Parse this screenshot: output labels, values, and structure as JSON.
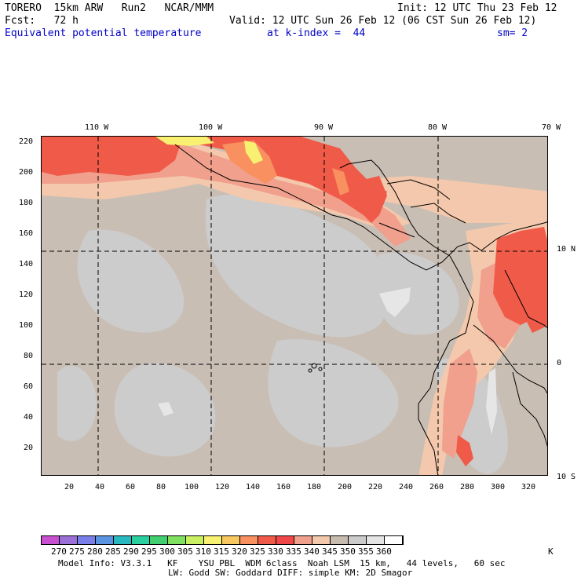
{
  "header": {
    "line1_left": "TORERO  15km ARW   Run2   NCAR/MMM",
    "line1_right": "Init: 12 UTC Thu 23 Feb 12",
    "line2_left": "Fcst:   72 h",
    "line2_right": "Valid: 12 UTC Sun 26 Feb 12 (06 CST Sun 26 Feb 12)",
    "field_name": "Equivalent potential temperature",
    "level_text": "at k-index =  44",
    "smooth_text": "sm= 2"
  },
  "map": {
    "top_lon_labels": [
      "110 W",
      "100 W",
      "90 W",
      "80 W",
      "70 W"
    ],
    "right_lat_labels": [
      "10 N",
      "0",
      "10 S"
    ],
    "left_y_ticks": [
      "220",
      "200",
      "180",
      "160",
      "140",
      "120",
      "100",
      "80",
      "60",
      "40",
      "20"
    ],
    "bottom_x_ticks": [
      "20",
      "40",
      "60",
      "80",
      "100",
      "120",
      "140",
      "160",
      "180",
      "200",
      "220",
      "240",
      "260",
      "280",
      "300",
      "320"
    ]
  },
  "colorbar": {
    "levels": [
      "270",
      "275",
      "280",
      "285",
      "290",
      "295",
      "300",
      "305",
      "310",
      "315",
      "320",
      "325",
      "330",
      "335",
      "340",
      "345",
      "350",
      "355",
      "360"
    ],
    "unit": "K",
    "colors": [
      "#c84fd0",
      "#9a6fd8",
      "#7a7ee8",
      "#5a93e0",
      "#28b8c0",
      "#28d0a0",
      "#40d070",
      "#80e060",
      "#c8f060",
      "#f8f070",
      "#f8c860",
      "#f89060",
      "#f05a48",
      "#f04848",
      "#f0a08c",
      "#f4c8ac",
      "#c8bcb0",
      "#cccccc",
      "#e4e4e4",
      "#ffffff"
    ]
  },
  "footer": {
    "line1": "Model Info: V3.3.1   KF    YSU PBL  WDM 6class  Noah LSM  15 km,   44 levels,   60 sec",
    "line2": "LW: Godd SW: Goddard DIFF: simple KM: 2D Smagor"
  }
}
